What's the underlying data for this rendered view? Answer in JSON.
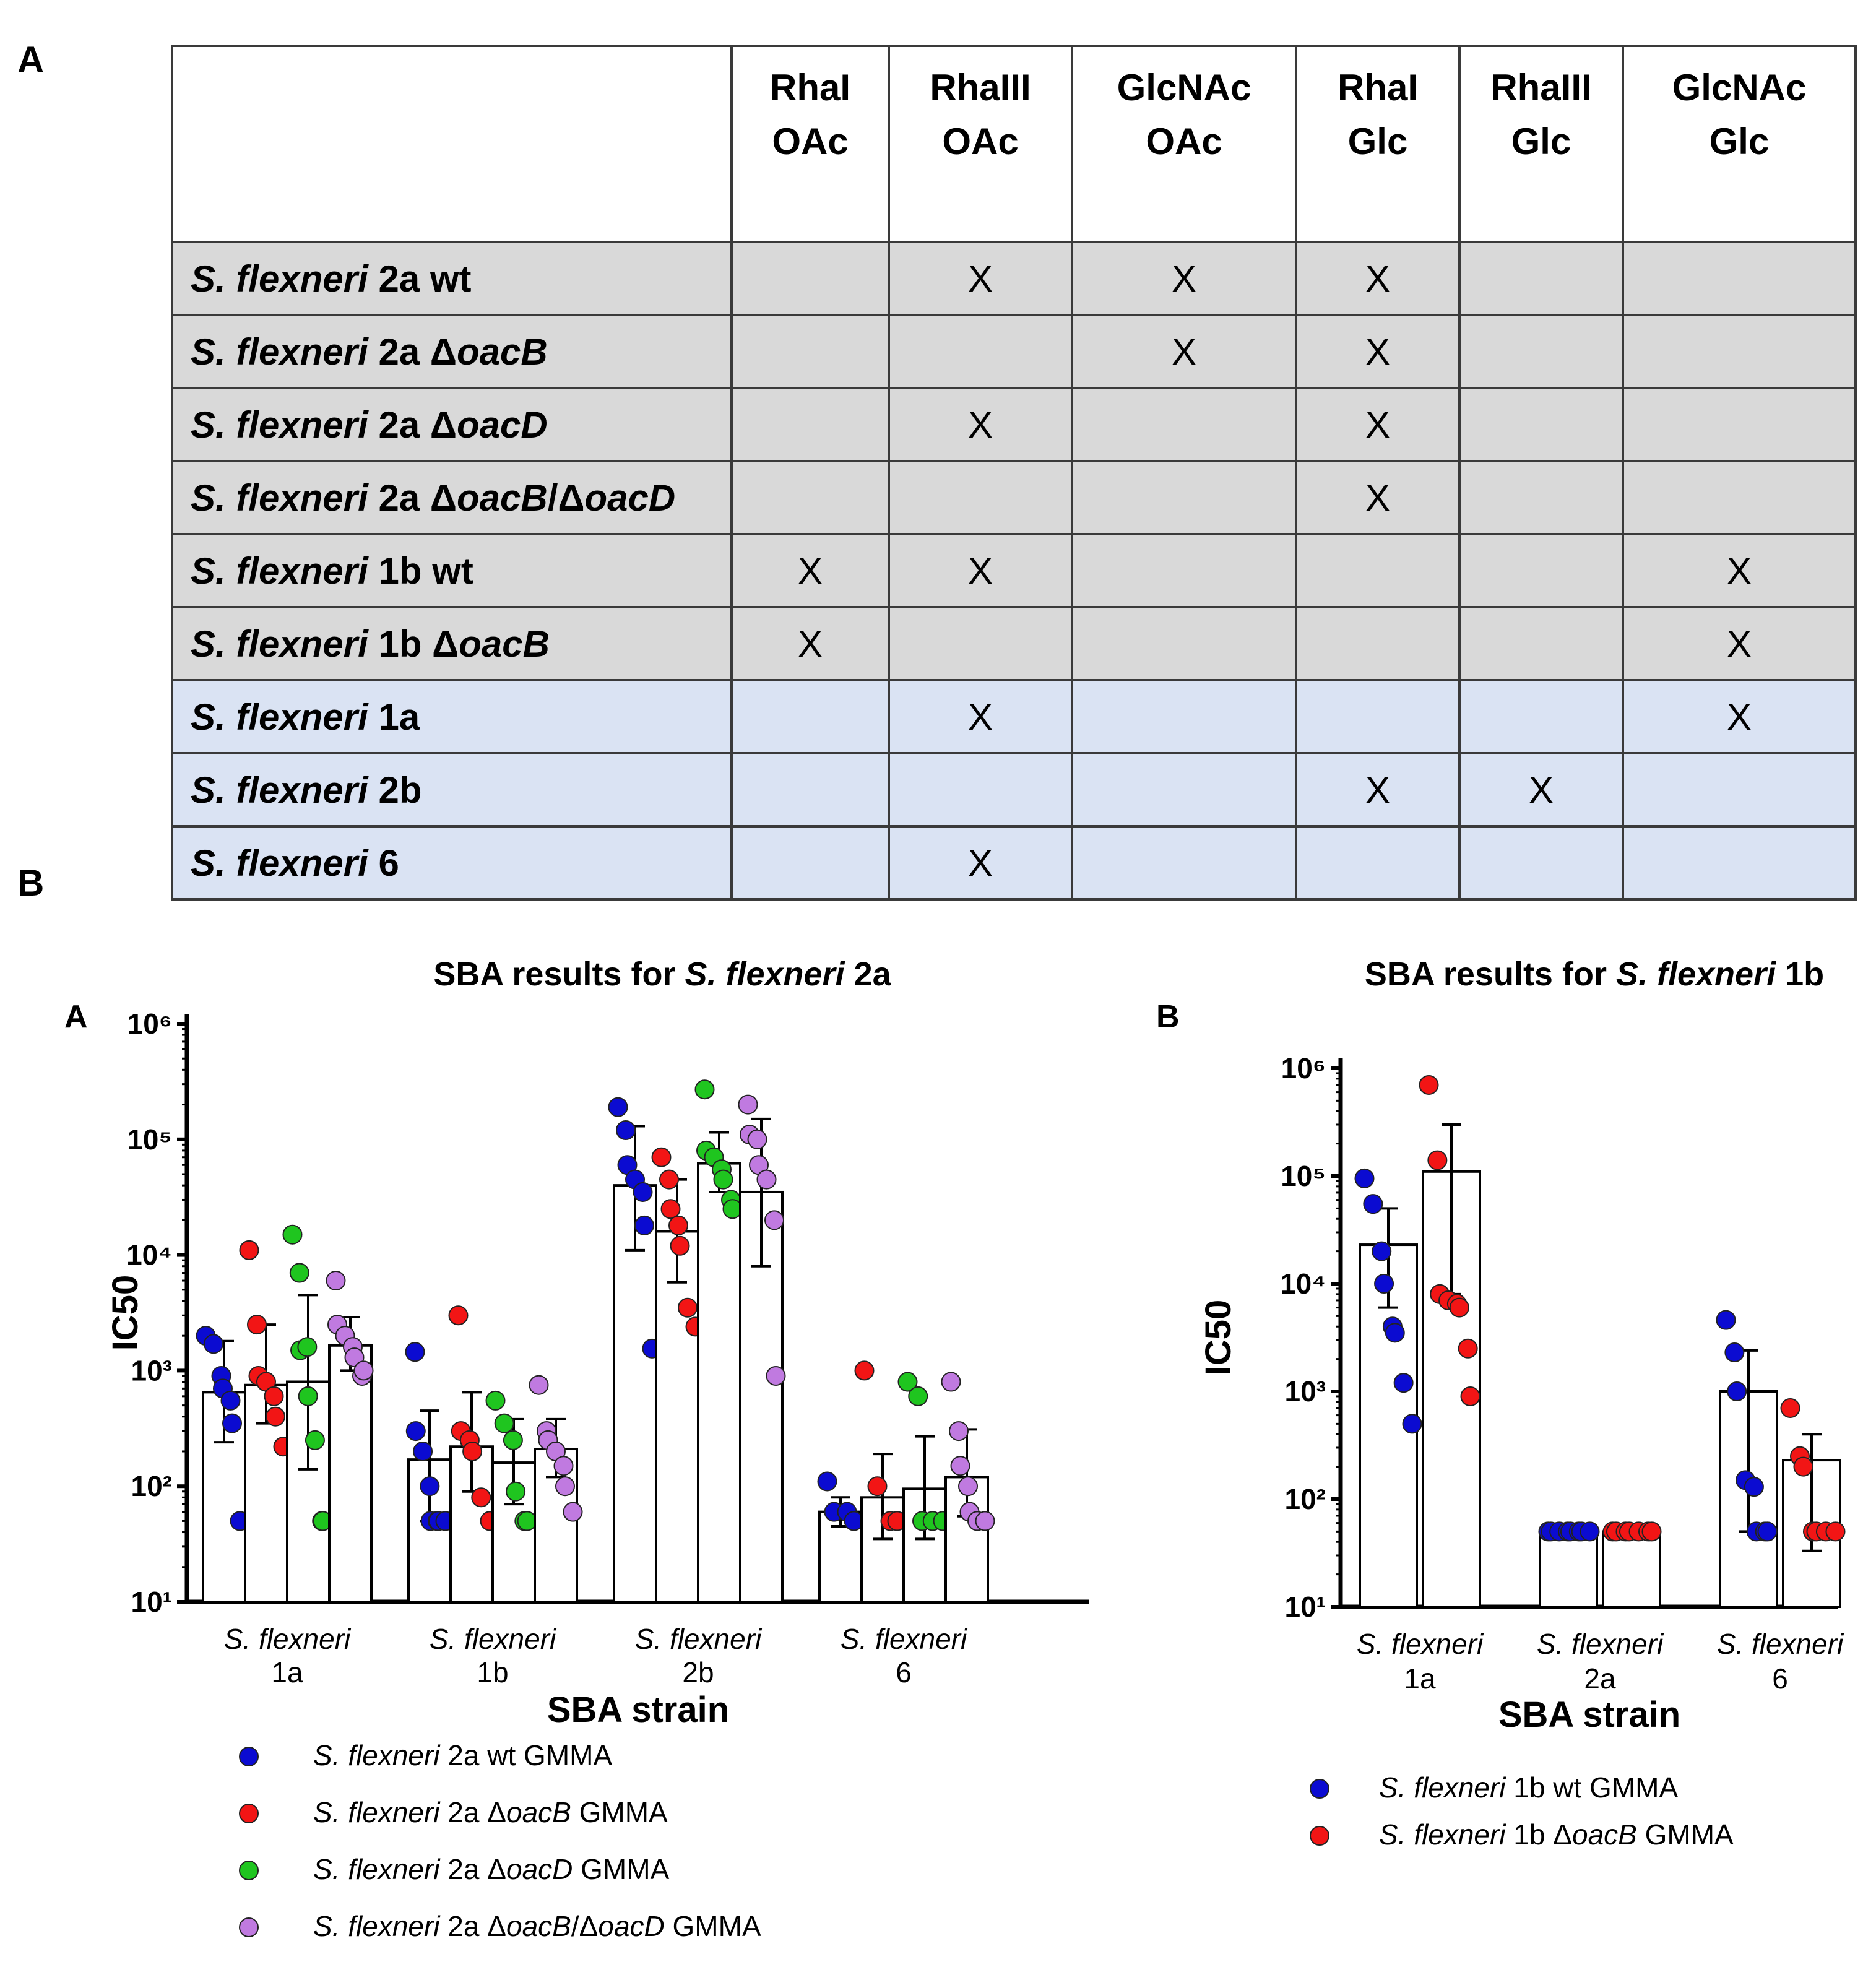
{
  "panel_labels": {
    "top": "A",
    "bottom": "B"
  },
  "table": {
    "headers": [
      "",
      "RhaI OAc",
      "RhaIII OAc",
      "GlcNAc OAc",
      "RhaI Glc",
      "RhaIII Glc",
      "GlcNAc Glc"
    ],
    "rows": [
      {
        "species": "S. flexneri",
        "strain": "2a wt",
        "shade": "grey",
        "cells": [
          "",
          "X",
          "X",
          "X",
          "",
          ""
        ]
      },
      {
        "species": "S. flexneri",
        "strain": "2a ΔoacB",
        "shade": "grey",
        "cells": [
          "",
          "",
          "X",
          "X",
          "",
          ""
        ]
      },
      {
        "species": "S. flexneri",
        "strain": "2a ΔoacD",
        "shade": "grey",
        "cells": [
          "",
          "X",
          "",
          "X",
          "",
          ""
        ]
      },
      {
        "species": "S. flexneri",
        "strain": "2a ΔoacB/ΔoacD",
        "shade": "grey",
        "cells": [
          "",
          "",
          "",
          "X",
          "",
          ""
        ]
      },
      {
        "species": "S. flexneri",
        "strain": "1b wt",
        "shade": "grey",
        "cells": [
          "X",
          "X",
          "",
          "",
          "",
          "X"
        ]
      },
      {
        "species": "S. flexneri",
        "strain": "1b ΔoacB",
        "shade": "grey",
        "cells": [
          "X",
          "",
          "",
          "",
          "",
          "X"
        ]
      },
      {
        "species": "S. flexneri",
        "strain": "1a",
        "shade": "blue",
        "cells": [
          "",
          "X",
          "",
          "",
          "",
          "X"
        ]
      },
      {
        "species": "S. flexneri",
        "strain": "2b",
        "shade": "blue",
        "cells": [
          "",
          "",
          "",
          "X",
          "X",
          ""
        ]
      },
      {
        "species": "S. flexneri",
        "strain": "6",
        "shade": "blue",
        "cells": [
          "",
          "X",
          "",
          "",
          "",
          ""
        ]
      }
    ]
  },
  "colors": {
    "blue": "#0b0bd1",
    "red": "#f21515",
    "green": "#1fc51f",
    "purple": "#c07ae0"
  },
  "chart_data": [
    {
      "type": "bar",
      "panel": "A",
      "title": "SBA results for S. flexneri 2a",
      "xlabel": "SBA strain",
      "ylabel": "IC50",
      "yscale": "log",
      "ylim": [
        10,
        1000000
      ],
      "yticks": [
        "10¹",
        "10²",
        "10³",
        "10⁴",
        "10⁵",
        "10⁶"
      ],
      "categories": [
        "S. flexneri 1a",
        "S. flexneri 1b",
        "S. flexneri 2b",
        "S. flexneri 6"
      ],
      "series": [
        {
          "name": "S. flexneri 2a wt GMMA",
          "color": "#0b0bd1",
          "means": [
            650,
            170,
            40000,
            60
          ],
          "err_low": [
            240,
            50,
            11000,
            45
          ],
          "err_high": [
            1800,
            450,
            130000,
            80
          ],
          "points": [
            [
              2000,
              1700,
              900,
              700,
              550,
              350,
              50
            ],
            [
              1450,
              300,
              200,
              100,
              50,
              50,
              50,
              50
            ],
            [
              190000,
              120000,
              60000,
              45000,
              35000,
              18000,
              1550
            ],
            [
              110,
              60,
              60,
              50
            ]
          ]
        },
        {
          "name": "S. flexneri 2a ΔoacB GMMA",
          "color": "#f21515",
          "means": [
            750,
            220,
            16000,
            80
          ],
          "err_low": [
            350,
            90,
            5800,
            35
          ],
          "err_high": [
            2500,
            650,
            45000,
            190
          ],
          "points": [
            [
              11000,
              2500,
              900,
              800,
              600,
              400,
              220
            ],
            [
              3000,
              300,
              250,
              200,
              80,
              50
            ],
            [
              70000,
              45000,
              25000,
              18000,
              12000,
              3500,
              2400
            ],
            [
              1000,
              100,
              50,
              50
            ]
          ]
        },
        {
          "name": "S. flexneri 2a ΔoacD GMMA",
          "color": "#1fc51f",
          "means": [
            800,
            160,
            62000,
            95
          ],
          "err_low": [
            140,
            70,
            35000,
            35
          ],
          "err_high": [
            4500,
            380,
            115000,
            270
          ],
          "points": [
            [
              15000,
              7000,
              1500,
              1600,
              600,
              250,
              50,
              50
            ],
            [
              550,
              350,
              250,
              90,
              50,
              50
            ],
            [
              270000,
              80000,
              70000,
              55000,
              45000,
              30000,
              25000
            ],
            [
              800,
              600,
              50,
              50,
              50
            ]
          ]
        },
        {
          "name": "S. flexneri 2a ΔoacB/ΔoacD GMMA",
          "color": "#c07ae0",
          "means": [
            1650,
            210,
            35000,
            120
          ],
          "err_low": [
            1000,
            120,
            8000,
            55
          ],
          "err_high": [
            2900,
            380,
            150000,
            310
          ],
          "points": [
            [
              6000,
              2500,
              2000,
              1600,
              1300,
              900,
              1000
            ],
            [
              750,
              300,
              250,
              200,
              150,
              100,
              60
            ],
            [
              200000,
              110000,
              100000,
              60000,
              45000,
              20000,
              900
            ],
            [
              800,
              300,
              150,
              100,
              60,
              50,
              50
            ]
          ]
        }
      ],
      "legend_position": "bottom"
    },
    {
      "type": "bar",
      "panel": "B",
      "title": "SBA results for S. flexneri 1b",
      "xlabel": "SBA strain",
      "ylabel": "IC50",
      "yscale": "log",
      "ylim": [
        10,
        1000000
      ],
      "yticks": [
        "10¹",
        "10²",
        "10³",
        "10⁴",
        "10⁵",
        "10⁶"
      ],
      "categories": [
        "S. flexneri 1a",
        "S. flexneri 2a",
        "S. flexneri 6"
      ],
      "series": [
        {
          "name": "S. flexneri 1b wt GMMA",
          "color": "#0b0bd1",
          "means": [
            23000,
            50,
            1000
          ],
          "err_low": [
            6000,
            50,
            50
          ],
          "err_high": [
            50000,
            50,
            2400
          ],
          "points": [
            [
              95000,
              55000,
              20000,
              10000,
              4000,
              3500,
              1200,
              500
            ],
            [
              50,
              50,
              50,
              50,
              50,
              50,
              50,
              50
            ],
            [
              4600,
              2300,
              1000,
              150,
              130,
              50,
              50,
              50
            ]
          ]
        },
        {
          "name": "S. flexneri 1b ΔoacB GMMA",
          "color": "#f21515",
          "means": [
            110000,
            50,
            230
          ],
          "err_low": [
            8000,
            50,
            33
          ],
          "err_high": [
            300000,
            50,
            400
          ],
          "points": [
            [
              700000,
              140000,
              8000,
              7000,
              6500,
              6000,
              2500,
              900
            ],
            [
              50,
              50,
              50,
              50,
              50,
              50,
              50
            ],
            [
              700,
              250,
              200,
              50,
              50,
              50,
              50
            ]
          ]
        }
      ],
      "legend_position": "bottom"
    }
  ]
}
